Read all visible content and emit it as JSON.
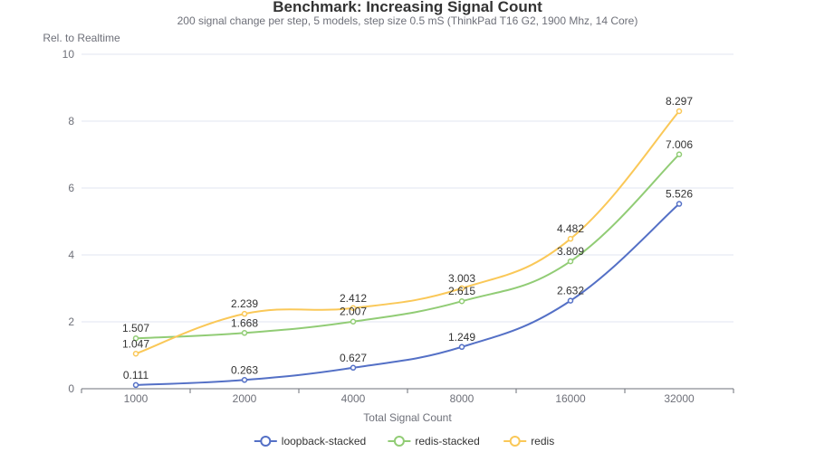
{
  "chart_data": {
    "type": "line",
    "title": "Benchmark: Increasing Signal Count",
    "subtitle": "200 signal change per step, 5 models, step size 0.5 mS (ThinkPad T16 G2, 1900 Mhz, 14 Core)",
    "xlabel": "Total Signal Count",
    "ylabel": "Rel. to Realtime",
    "categories": [
      "1000",
      "2000",
      "4000",
      "8000",
      "16000",
      "32000"
    ],
    "ylim": [
      0,
      10
    ],
    "yticks": [
      "0",
      "2",
      "4",
      "6",
      "8",
      "10"
    ],
    "grid": true,
    "legend_position": "bottom-center",
    "series": [
      {
        "name": "loopback-stacked",
        "color": "#5470c6",
        "values": [
          0.111,
          0.263,
          0.627,
          1.249,
          2.632,
          5.526
        ],
        "labels": [
          "0.111",
          "0.263",
          "0.627",
          "1.249",
          "2.632",
          "5.526"
        ]
      },
      {
        "name": "redis-stacked",
        "color": "#91cc75",
        "values": [
          1.507,
          1.668,
          2.007,
          2.615,
          3.809,
          7.006
        ],
        "labels": [
          "1.507",
          "1.668",
          "2.007",
          "2.615",
          "3.809",
          "7.006"
        ]
      },
      {
        "name": "redis",
        "color": "#fac858",
        "values": [
          1.047,
          2.239,
          2.412,
          3.003,
          4.482,
          8.297
        ],
        "labels": [
          "1.047",
          "2.239",
          "2.412",
          "3.003",
          "4.482",
          "8.297"
        ]
      }
    ]
  }
}
